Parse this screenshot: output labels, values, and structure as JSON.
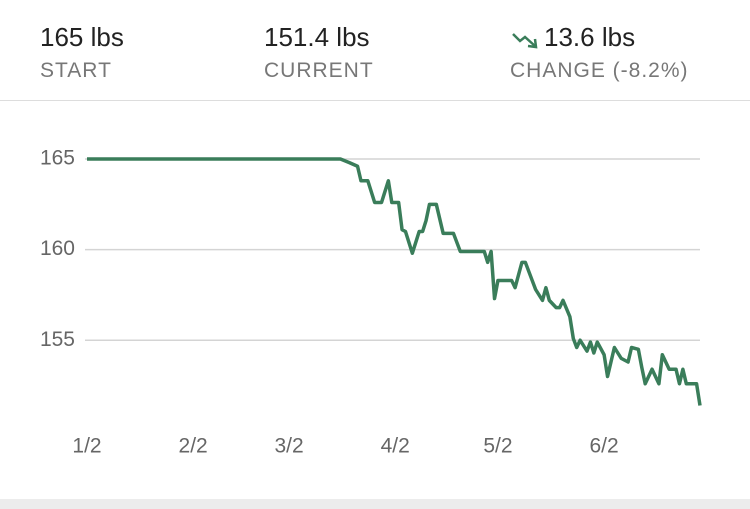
{
  "stats": [
    {
      "value": "165 lbs",
      "label": "START"
    },
    {
      "value": "151.4 lbs",
      "label": "CURRENT"
    },
    {
      "value": "13.6 lbs",
      "label": "CHANGE (-8.2%)"
    }
  ],
  "chart_data": {
    "type": "line",
    "x": [
      0,
      74,
      76.6,
      79,
      80,
      82,
      84,
      86,
      88,
      89,
      91,
      92,
      93,
      95,
      97,
      98,
      99,
      100,
      102,
      104,
      107,
      109,
      116,
      117,
      118,
      119,
      120,
      124,
      125,
      127,
      128,
      130,
      131,
      133,
      134,
      135,
      137,
      138,
      139,
      141,
      142,
      143,
      144,
      146,
      147,
      148,
      149,
      151,
      152,
      154,
      156,
      158,
      159,
      161,
      162,
      163,
      165,
      167,
      168,
      170,
      172,
      173,
      174,
      175,
      178,
      179
    ],
    "series": [
      {
        "color": "#3a7d5a",
        "values": [
          165,
          165,
          164.8,
          164.6,
          163.8,
          163.8,
          162.6,
          162.6,
          163.8,
          162.6,
          162.6,
          161.1,
          161,
          159.8,
          161,
          161,
          161.6,
          162.5,
          162.5,
          160.9,
          160.9,
          159.9,
          159.9,
          159.3,
          159.9,
          157.3,
          158.3,
          158.3,
          157.9,
          159.3,
          159.3,
          158.3,
          157.8,
          157.2,
          157.9,
          157.2,
          156.8,
          156.8,
          157.2,
          156.3,
          155.1,
          154.6,
          155,
          154.4,
          154.9,
          154.3,
          154.9,
          154.2,
          153,
          154.6,
          154,
          153.8,
          154.6,
          154.5,
          153.5,
          152.6,
          153.4,
          152.6,
          154.2,
          153.4,
          153.4,
          152.6,
          153.4,
          152.6,
          152.6,
          151.4
        ]
      }
    ],
    "xlim": [
      0,
      179
    ],
    "xticks": [
      {
        "value": 0,
        "label": "1/2"
      },
      {
        "value": 31,
        "label": "2/2"
      },
      {
        "value": 59,
        "label": "3/2"
      },
      {
        "value": 90,
        "label": "4/2"
      },
      {
        "value": 120,
        "label": "5/2"
      },
      {
        "value": 151,
        "label": "6/2"
      }
    ],
    "ylim": [
      150.6,
      166.6
    ],
    "yticks": [
      155,
      160,
      165
    ],
    "grid": true
  }
}
